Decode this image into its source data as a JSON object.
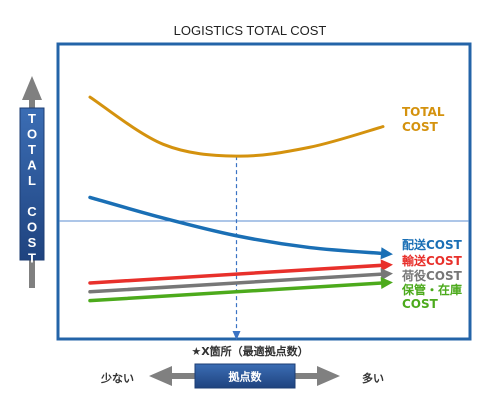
{
  "chart_data": {
    "type": "line",
    "title": "LOGISTICS TOTAL COST",
    "ylabel": "TOTAL COST",
    "xlabel": "拠点数",
    "x_axis_low_label": "少ない",
    "x_axis_high_label": "多い",
    "optimum_label": "★X箇所（最適拠点数）",
    "x": [
      0,
      0.25,
      0.5,
      0.75,
      1
    ],
    "optimum_x": 0.5,
    "ylim": [
      0,
      1
    ],
    "series": [
      {
        "name": "TOTAL COST",
        "label_lines": [
          "TOTAL",
          "COST"
        ],
        "color": "#d4920e",
        "values": [
          0.82,
          0.66,
          0.62,
          0.65,
          0.72
        ]
      },
      {
        "name": "配送COST",
        "label_lines": [
          "配送COST"
        ],
        "color": "#1a6fb5",
        "values": [
          0.48,
          0.41,
          0.35,
          0.31,
          0.29
        ],
        "arrow": true
      },
      {
        "name": "輸送COST",
        "label_lines": [
          "輸送COST"
        ],
        "color": "#e8302b",
        "values": [
          0.19,
          0.205,
          0.22,
          0.235,
          0.25
        ],
        "arrow": true
      },
      {
        "name": "荷役COST",
        "label_lines": [
          "荷役COST"
        ],
        "color": "#777777",
        "values": [
          0.16,
          0.175,
          0.19,
          0.205,
          0.22
        ],
        "arrow": true
      },
      {
        "name": "保管・在庫COST",
        "label_lines": [
          "保管・在庫",
          "COST"
        ],
        "color": "#4caa1c",
        "values": [
          0.13,
          0.145,
          0.16,
          0.175,
          0.19
        ],
        "arrow": true
      }
    ],
    "reference_line_y": 0.4,
    "grid": false,
    "legend": "right-inline",
    "colors": {
      "frame": "#2464a8",
      "axis_arrow": "#7a7a7a",
      "label_box": "#2c5597",
      "reference_line": "#5b8ed0",
      "optimum_line": "#3a73c4"
    }
  }
}
